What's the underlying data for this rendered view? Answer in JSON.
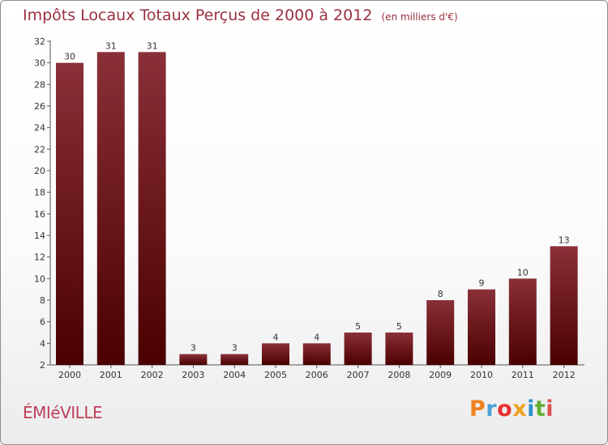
{
  "header": {
    "title": "Impôts Locaux Totaux Perçus de 2000 à 2012",
    "subtitle": "(en milliers d'€)"
  },
  "footer": {
    "commune": "ÉMIéVILLE",
    "brand": "Proxiti"
  },
  "colors": {
    "bar_top": "#8a3038",
    "bar_bottom": "#4a0000",
    "title": "#9a3040",
    "commune": "#c0405a",
    "brand_letters": [
      "#f08020",
      "#4aa0d8",
      "#e83030",
      "#f0a020",
      "#3090d0",
      "#60b030",
      "#e05050"
    ]
  },
  "chart_data": {
    "type": "bar",
    "title": "Impôts Locaux Totaux Perçus de 2000 à 2012",
    "subtitle": "(en milliers d'€)",
    "categories": [
      "2000",
      "2001",
      "2002",
      "2003",
      "2004",
      "2005",
      "2006",
      "2007",
      "2008",
      "2009",
      "2010",
      "2011",
      "2012"
    ],
    "values": [
      30,
      31,
      31,
      3,
      3,
      4,
      4,
      5,
      5,
      8,
      9,
      10,
      13
    ],
    "data_labels": [
      "30",
      "31",
      "31",
      "3",
      "3",
      "4",
      "4",
      "5",
      "5",
      "8",
      "9",
      "10",
      "13"
    ],
    "y_ticks": [
      "2",
      "4",
      "6",
      "8",
      "10",
      "12",
      "14",
      "16",
      "18",
      "20",
      "22",
      "24",
      "26",
      "28",
      "30",
      "32"
    ],
    "ylim": [
      2,
      32
    ],
    "xlabel": "",
    "ylabel": "",
    "grid": false
  }
}
